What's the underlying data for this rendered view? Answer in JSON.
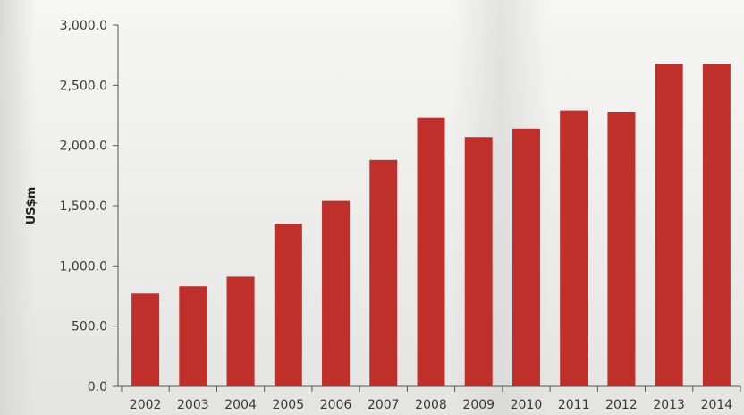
{
  "chart_data": {
    "type": "bar",
    "title": "",
    "xlabel": "",
    "ylabel": "US$m",
    "ylim": [
      0,
      3000
    ],
    "yticks": [
      0,
      500,
      1000,
      1500,
      2000,
      2500,
      3000
    ],
    "ytick_labels": [
      "0.0",
      "500.0",
      "1,000.0",
      "1,500.0",
      "2,000.0",
      "2,500.0",
      "3,000.0"
    ],
    "categories": [
      "2002",
      "2003",
      "2004",
      "2005",
      "2006",
      "2007",
      "2008",
      "2009",
      "2010",
      "2011",
      "2012",
      "2013",
      "2014"
    ],
    "values": [
      770,
      830,
      910,
      1350,
      1540,
      1880,
      2230,
      2070,
      2140,
      2290,
      2280,
      2680,
      2680
    ],
    "grid": false,
    "bar_color": "#c0302a",
    "axis_color": "#555555"
  }
}
